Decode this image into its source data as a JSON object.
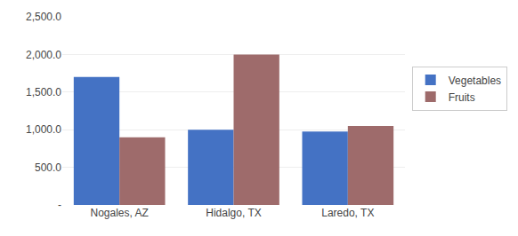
{
  "chart_data": {
    "type": "bar",
    "categories": [
      "Nogales, AZ",
      "Hidalgo, TX",
      "Laredo, TX"
    ],
    "series": [
      {
        "name": "Vegetables",
        "color": "#4472C4",
        "values": [
          1700,
          1000,
          975
        ]
      },
      {
        "name": "Fruits",
        "color": "#9E6B6B",
        "values": [
          900,
          2000,
          1050
        ]
      }
    ],
    "ylim": [
      0,
      2500
    ],
    "yticks": [
      {
        "value": 0,
        "label": " -"
      },
      {
        "value": 500,
        "label": "500.0"
      },
      {
        "value": 1000,
        "label": "1,000.0"
      },
      {
        "value": 1500,
        "label": "1,500.0"
      },
      {
        "value": 2000,
        "label": "2,000.0"
      },
      {
        "value": 2500,
        "label": "2,500.0"
      }
    ],
    "grid": true,
    "legend": "right"
  }
}
